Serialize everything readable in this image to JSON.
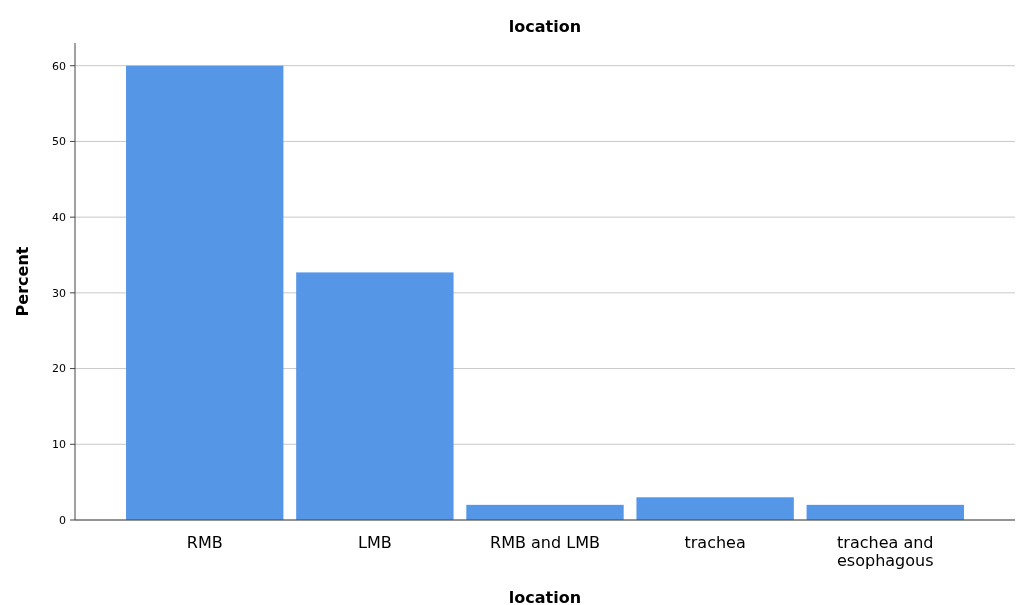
{
  "chart_data": {
    "type": "bar",
    "title": "location",
    "xlabel": "location",
    "ylabel": "Percent",
    "categories": [
      "RMB",
      "LMB",
      "RMB and LMB",
      "trachea",
      "trachea and esophagous"
    ],
    "values": [
      60,
      32.7,
      2,
      3,
      2
    ],
    "color": "#5596e6",
    "ylim": [
      0,
      63
    ],
    "yticks": [
      0,
      10,
      20,
      30,
      40,
      50,
      60
    ],
    "grid": "y"
  }
}
